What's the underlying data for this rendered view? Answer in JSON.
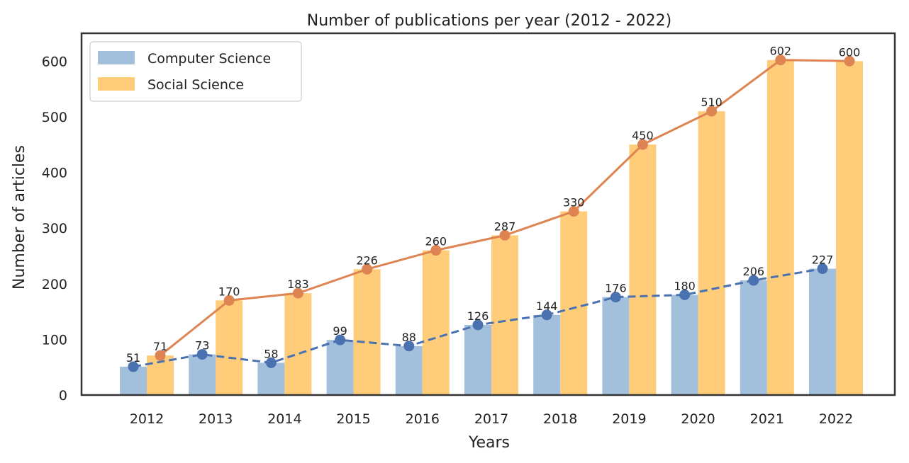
{
  "chart_data": {
    "type": "bar",
    "title": "Number of publications per year (2012 - 2022)",
    "xlabel": "Years",
    "ylabel": "Number of articles",
    "categories": [
      "2012",
      "2013",
      "2014",
      "2015",
      "2016",
      "2017",
      "2018",
      "2019",
      "2020",
      "2021",
      "2022"
    ],
    "ylim": [
      0,
      650
    ],
    "yticks": [
      0,
      100,
      200,
      300,
      400,
      500,
      600
    ],
    "grid": false,
    "legend_position": "top-left",
    "series": [
      {
        "name": "Computer Science",
        "values": [
          51,
          73,
          58,
          99,
          88,
          126,
          144,
          176,
          180,
          206,
          227
        ],
        "bar_color": "#a2bfdb",
        "line_color": "#4a72b0",
        "line_style": "dashed",
        "marker_color": "#4a72b0"
      },
      {
        "name": "Social Science",
        "values": [
          71,
          170,
          183,
          226,
          260,
          287,
          330,
          450,
          510,
          602,
          600
        ],
        "bar_color": "#ffcc7a",
        "line_color": "#dd8452",
        "line_style": "solid",
        "marker_color": "#dd8452"
      }
    ]
  }
}
